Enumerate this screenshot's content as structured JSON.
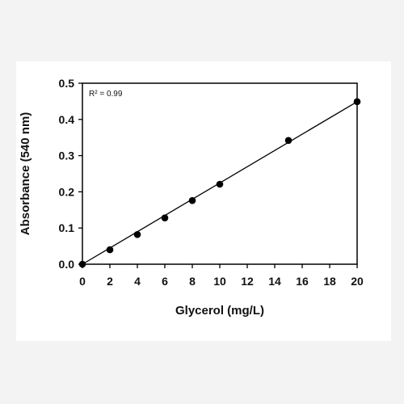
{
  "chart_data": {
    "type": "scatter",
    "xlabel": "Glycerol (mg/L)",
    "ylabel": "Absorbance (540 nm)",
    "xlim": [
      0,
      20
    ],
    "ylim": [
      0,
      0.5
    ],
    "xticks": [
      0,
      2,
      4,
      6,
      8,
      10,
      12,
      14,
      16,
      18,
      20
    ],
    "yticks": [
      0.0,
      0.1,
      0.2,
      0.3,
      0.4,
      0.5
    ],
    "xtick_labels": [
      "0",
      "2",
      "4",
      "6",
      "8",
      "10",
      "12",
      "14",
      "16",
      "18",
      "20"
    ],
    "ytick_labels": [
      "0.0",
      "0.1",
      "0.2",
      "0.3",
      "0.4",
      "0.5"
    ],
    "annotation": "R² = 0.99",
    "grid": false,
    "series": [
      {
        "x": [
          0,
          2,
          4,
          6,
          8,
          10,
          15,
          20
        ],
        "y": [
          0.0,
          0.04,
          0.082,
          0.128,
          0.176,
          0.221,
          0.342,
          0.449
        ]
      }
    ],
    "trendline": {
      "x": [
        0,
        20
      ],
      "y": [
        0.0,
        0.449
      ]
    },
    "colors": {
      "marker": "#000000",
      "line": "#000000",
      "axis": "#000000",
      "background": "#ffffff",
      "page": "#f3f3f3"
    }
  }
}
